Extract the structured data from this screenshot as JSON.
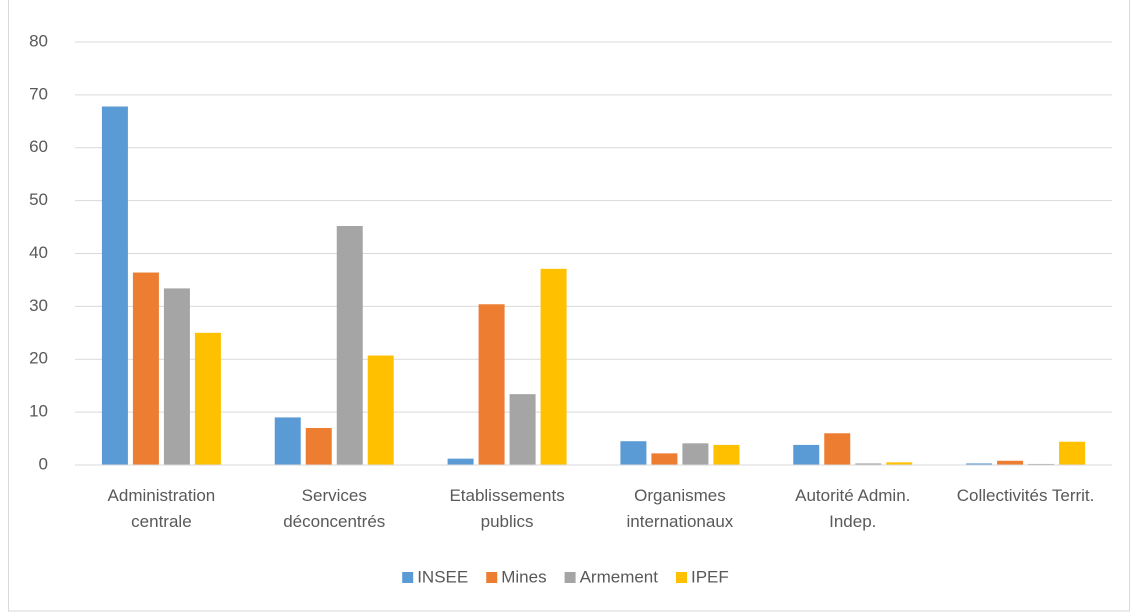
{
  "chart_data": {
    "type": "bar",
    "categories": [
      "Administration centrale",
      "Services déconcentrés",
      "Etablissements publics",
      "Organismes internationaux",
      "Autorité Admin. Indep.",
      "Collectivités Territ."
    ],
    "series": [
      {
        "name": "INSEE",
        "color": "#5b9bd5",
        "values": [
          67.8,
          9,
          1.2,
          4.5,
          3.8,
          0.3
        ]
      },
      {
        "name": "Mines",
        "color": "#ed7d31",
        "values": [
          36.4,
          7,
          30.4,
          2.2,
          6,
          0.8
        ]
      },
      {
        "name": "Armement",
        "color": "#a5a5a5",
        "values": [
          33.4,
          45.2,
          13.4,
          4.1,
          0.3,
          0.2
        ]
      },
      {
        "name": "IPEF",
        "color": "#ffc000",
        "values": [
          25,
          20.7,
          37.1,
          3.8,
          0.5,
          4.4
        ]
      }
    ],
    "ylim": [
      0,
      80
    ],
    "yticks": [
      0,
      10,
      20,
      30,
      40,
      50,
      60,
      70,
      80
    ],
    "grid": true,
    "legend": "bottom"
  }
}
